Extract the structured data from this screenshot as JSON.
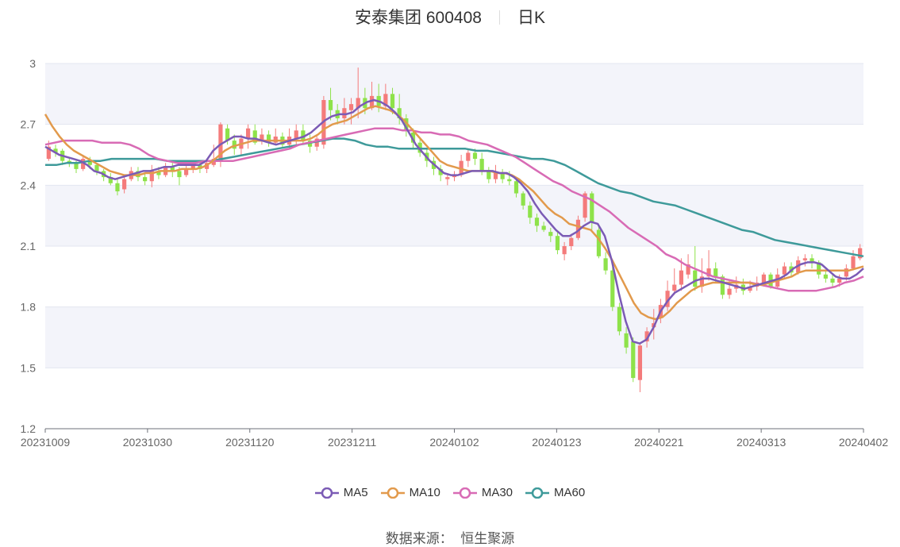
{
  "title": {
    "name": "安泰集团 600408",
    "period": "日K"
  },
  "source": {
    "label": "数据来源：",
    "provider": "恒生聚源"
  },
  "colors": {
    "up": "#f47b7b",
    "down": "#8ee24a",
    "ma5": "#7b5bb5",
    "ma10": "#e29a4c",
    "ma30": "#d86bb5",
    "ma60": "#3e9a9a",
    "band": "#f3f4fa",
    "grid": "#e3e6f0"
  },
  "chart_data": {
    "type": "candlestick",
    "ylim": [
      1.2,
      3.0
    ],
    "yticks": [
      1.2,
      1.5,
      1.8,
      2.1,
      2.4,
      2.7,
      3
    ],
    "xticks": [
      "20231009",
      "20231030",
      "20231120",
      "20231211",
      "20240102",
      "20240123",
      "20240221",
      "20240313",
      "20240402"
    ],
    "legend": [
      "MA5",
      "MA10",
      "MA30",
      "MA60"
    ],
    "candles": [
      [
        2.53,
        2.59,
        2.52,
        2.62
      ],
      [
        2.58,
        2.56,
        2.54,
        2.6
      ],
      [
        2.57,
        2.52,
        2.5,
        2.58
      ],
      [
        2.52,
        2.51,
        2.49,
        2.54
      ],
      [
        2.51,
        2.48,
        2.46,
        2.52
      ],
      [
        2.48,
        2.53,
        2.47,
        2.55
      ],
      [
        2.52,
        2.5,
        2.48,
        2.54
      ],
      [
        2.5,
        2.47,
        2.45,
        2.51
      ],
      [
        2.47,
        2.44,
        2.42,
        2.48
      ],
      [
        2.44,
        2.41,
        2.4,
        2.46
      ],
      [
        2.41,
        2.37,
        2.35,
        2.43
      ],
      [
        2.38,
        2.43,
        2.36,
        2.45
      ],
      [
        2.43,
        2.47,
        2.42,
        2.49
      ],
      [
        2.47,
        2.44,
        2.42,
        2.49
      ],
      [
        2.44,
        2.42,
        2.4,
        2.46
      ],
      [
        2.42,
        2.47,
        2.39,
        2.5
      ],
      [
        2.47,
        2.45,
        2.43,
        2.49
      ],
      [
        2.45,
        2.49,
        2.44,
        2.51
      ],
      [
        2.49,
        2.47,
        2.44,
        2.51
      ],
      [
        2.47,
        2.44,
        2.4,
        2.49
      ],
      [
        2.45,
        2.48,
        2.44,
        2.5
      ],
      [
        2.48,
        2.5,
        2.46,
        2.52
      ],
      [
        2.5,
        2.48,
        2.46,
        2.52
      ],
      [
        2.48,
        2.51,
        2.46,
        2.53
      ],
      [
        2.5,
        2.53,
        2.49,
        2.6
      ],
      [
        2.52,
        2.7,
        2.49,
        2.71
      ],
      [
        2.68,
        2.62,
        2.6,
        2.7
      ],
      [
        2.62,
        2.58,
        2.55,
        2.65
      ],
      [
        2.58,
        2.63,
        2.55,
        2.65
      ],
      [
        2.63,
        2.68,
        2.58,
        2.7
      ],
      [
        2.67,
        2.61,
        2.6,
        2.7
      ],
      [
        2.62,
        2.65,
        2.6,
        2.68
      ],
      [
        2.65,
        2.61,
        2.59,
        2.67
      ],
      [
        2.61,
        2.64,
        2.6,
        2.68
      ],
      [
        2.64,
        2.6,
        2.58,
        2.66
      ],
      [
        2.6,
        2.64,
        2.58,
        2.68
      ],
      [
        2.63,
        2.67,
        2.6,
        2.7
      ],
      [
        2.67,
        2.62,
        2.6,
        2.7
      ],
      [
        2.62,
        2.59,
        2.56,
        2.65
      ],
      [
        2.59,
        2.63,
        2.57,
        2.65
      ],
      [
        2.6,
        2.82,
        2.58,
        2.84
      ],
      [
        2.82,
        2.77,
        2.72,
        2.88
      ],
      [
        2.77,
        2.73,
        2.7,
        2.8
      ],
      [
        2.73,
        2.78,
        2.7,
        2.83
      ],
      [
        2.77,
        2.8,
        2.7,
        2.83
      ],
      [
        2.78,
        2.83,
        2.73,
        2.98
      ],
      [
        2.83,
        2.78,
        2.75,
        2.88
      ],
      [
        2.78,
        2.84,
        2.77,
        2.91
      ],
      [
        2.84,
        2.79,
        2.76,
        2.9
      ],
      [
        2.79,
        2.85,
        2.77,
        2.9
      ],
      [
        2.85,
        2.78,
        2.75,
        2.88
      ],
      [
        2.78,
        2.73,
        2.7,
        2.85
      ],
      [
        2.73,
        2.67,
        2.64,
        2.75
      ],
      [
        2.66,
        2.61,
        2.58,
        2.68
      ],
      [
        2.61,
        2.56,
        2.54,
        2.63
      ],
      [
        2.56,
        2.52,
        2.49,
        2.58
      ],
      [
        2.52,
        2.48,
        2.45,
        2.54
      ],
      [
        2.48,
        2.45,
        2.42,
        2.5
      ],
      [
        2.43,
        2.44,
        2.4,
        2.46
      ],
      [
        2.44,
        2.45,
        2.42,
        2.47
      ],
      [
        2.45,
        2.52,
        2.44,
        2.55
      ],
      [
        2.52,
        2.56,
        2.49,
        2.58
      ],
      [
        2.56,
        2.53,
        2.5,
        2.58
      ],
      [
        2.53,
        2.47,
        2.45,
        2.56
      ],
      [
        2.47,
        2.43,
        2.41,
        2.49
      ],
      [
        2.43,
        2.46,
        2.41,
        2.5
      ],
      [
        2.46,
        2.43,
        2.41,
        2.48
      ],
      [
        2.43,
        2.42,
        2.4,
        2.47
      ],
      [
        2.42,
        2.36,
        2.34,
        2.44
      ],
      [
        2.36,
        2.3,
        2.28,
        2.37
      ],
      [
        2.3,
        2.24,
        2.21,
        2.32
      ],
      [
        2.24,
        2.2,
        2.17,
        2.26
      ],
      [
        2.2,
        2.18,
        2.17,
        2.22
      ],
      [
        2.17,
        2.15,
        2.12,
        2.19
      ],
      [
        2.15,
        2.08,
        2.06,
        2.17
      ],
      [
        2.06,
        2.1,
        2.03,
        2.12
      ],
      [
        2.1,
        2.14,
        2.08,
        2.16
      ],
      [
        2.14,
        2.23,
        2.13,
        2.25
      ],
      [
        2.24,
        2.36,
        2.22,
        2.37
      ],
      [
        2.36,
        2.22,
        2.18,
        2.37
      ],
      [
        2.18,
        2.05,
        2.04,
        2.2
      ],
      [
        2.04,
        1.98,
        1.96,
        2.07
      ],
      [
        1.98,
        1.8,
        1.78,
        2.0
      ],
      [
        1.8,
        1.68,
        1.66,
        1.82
      ],
      [
        1.67,
        1.6,
        1.57,
        1.7
      ],
      [
        1.63,
        1.45,
        1.43,
        1.65
      ],
      [
        1.44,
        1.61,
        1.38,
        1.62
      ],
      [
        1.63,
        1.68,
        1.6,
        1.7
      ],
      [
        1.7,
        1.72,
        1.64,
        1.79
      ],
      [
        1.75,
        1.81,
        1.72,
        1.84
      ],
      [
        1.8,
        1.88,
        1.78,
        1.93
      ],
      [
        1.88,
        1.91,
        1.86,
        1.99
      ],
      [
        1.91,
        1.98,
        1.88,
        2.04
      ],
      [
        1.96,
        2.01,
        1.94,
        2.06
      ],
      [
        1.98,
        1.9,
        1.88,
        2.1
      ],
      [
        1.9,
        1.95,
        1.87,
        2.04
      ],
      [
        1.95,
        1.99,
        1.93,
        2.08
      ],
      [
        1.99,
        1.95,
        1.92,
        2.02
      ],
      [
        1.95,
        1.86,
        1.84,
        1.96
      ],
      [
        1.86,
        1.89,
        1.84,
        1.93
      ],
      [
        1.89,
        1.91,
        1.87,
        1.95
      ],
      [
        1.91,
        1.88,
        1.86,
        1.94
      ],
      [
        1.88,
        1.9,
        1.87,
        1.93
      ],
      [
        1.9,
        1.92,
        1.88,
        1.95
      ],
      [
        1.92,
        1.96,
        1.9,
        1.97
      ],
      [
        1.96,
        1.9,
        1.89,
        1.97
      ],
      [
        1.9,
        1.96,
        1.89,
        1.99
      ],
      [
        1.96,
        2.0,
        1.94,
        2.02
      ],
      [
        2.0,
        1.97,
        1.95,
        2.02
      ],
      [
        1.97,
        2.03,
        1.96,
        2.05
      ],
      [
        2.03,
        2.04,
        2.0,
        2.06
      ],
      [
        2.04,
        2.02,
        1.99,
        2.06
      ],
      [
        2.02,
        1.96,
        1.94,
        2.03
      ],
      [
        1.96,
        1.94,
        1.92,
        1.98
      ],
      [
        1.94,
        1.92,
        1.9,
        1.96
      ],
      [
        1.92,
        1.94,
        1.9,
        1.96
      ],
      [
        1.95,
        1.99,
        1.93,
        2.01
      ],
      [
        1.99,
        2.05,
        1.98,
        2.08
      ],
      [
        2.04,
        2.09,
        2.03,
        2.11
      ]
    ],
    "ma5": [
      2.59,
      2.57,
      2.55,
      2.54,
      2.53,
      2.52,
      2.5,
      2.47,
      2.46,
      2.44,
      2.43,
      2.44,
      2.45,
      2.46,
      2.47,
      2.47,
      2.48,
      2.49,
      2.49,
      2.5,
      2.5,
      2.5,
      2.5,
      2.52,
      2.57,
      2.6,
      2.62,
      2.64,
      2.64,
      2.63,
      2.63,
      2.62,
      2.61,
      2.6,
      2.61,
      2.62,
      2.63,
      2.64,
      2.66,
      2.69,
      2.72,
      2.74,
      2.75,
      2.75,
      2.76,
      2.79,
      2.81,
      2.82,
      2.81,
      2.79,
      2.76,
      2.72,
      2.66,
      2.6,
      2.56,
      2.52,
      2.49,
      2.46,
      2.45,
      2.45,
      2.46,
      2.47,
      2.47,
      2.47,
      2.47,
      2.46,
      2.46,
      2.44,
      2.41,
      2.37,
      2.31,
      2.26,
      2.22,
      2.18,
      2.15,
      2.15,
      2.17,
      2.2,
      2.22,
      2.21,
      2.15,
      2.03,
      1.87,
      1.73,
      1.63,
      1.62,
      1.64,
      1.7,
      1.78,
      1.83,
      1.87,
      1.89,
      1.91,
      1.93,
      1.94,
      1.94,
      1.93,
      1.92,
      1.91,
      1.9,
      1.89,
      1.9,
      1.91,
      1.92,
      1.93,
      1.94,
      1.96,
      1.99,
      2.01,
      2.02,
      2.02,
      2.01,
      1.98,
      1.95,
      1.94,
      1.94,
      1.96,
      1.99
    ],
    "ma10": [
      2.75,
      2.69,
      2.64,
      2.6,
      2.57,
      2.55,
      2.53,
      2.51,
      2.49,
      2.47,
      2.46,
      2.45,
      2.45,
      2.45,
      2.46,
      2.46,
      2.47,
      2.47,
      2.47,
      2.48,
      2.48,
      2.48,
      2.49,
      2.51,
      2.54,
      2.57,
      2.59,
      2.6,
      2.61,
      2.62,
      2.62,
      2.62,
      2.62,
      2.62,
      2.62,
      2.62,
      2.62,
      2.63,
      2.65,
      2.68,
      2.7,
      2.71,
      2.72,
      2.74,
      2.76,
      2.78,
      2.79,
      2.78,
      2.77,
      2.75,
      2.72,
      2.68,
      2.64,
      2.6,
      2.56,
      2.52,
      2.5,
      2.49,
      2.48,
      2.47,
      2.47,
      2.47,
      2.47,
      2.46,
      2.46,
      2.45,
      2.43,
      2.4,
      2.37,
      2.33,
      2.29,
      2.26,
      2.24,
      2.21,
      2.2,
      2.19,
      2.18,
      2.14,
      2.09,
      2.03,
      1.96,
      1.89,
      1.82,
      1.77,
      1.75,
      1.74,
      1.75,
      1.78,
      1.82,
      1.85,
      1.88,
      1.9,
      1.91,
      1.92,
      1.92,
      1.92,
      1.92,
      1.92,
      1.92,
      1.91,
      1.91,
      1.92,
      1.93,
      1.94,
      1.95,
      1.97,
      1.98,
      1.98,
      1.98,
      1.98,
      1.98,
      1.98,
      1.98,
      1.99,
      2.0
    ],
    "ma30": [
      2.6,
      2.61,
      2.62,
      2.62,
      2.62,
      2.62,
      2.61,
      2.61,
      2.61,
      2.6,
      2.58,
      2.55,
      2.53,
      2.52,
      2.51,
      2.51,
      2.51,
      2.52,
      2.52,
      2.52,
      2.52,
      2.53,
      2.54,
      2.55,
      2.56,
      2.57,
      2.58,
      2.6,
      2.61,
      2.62,
      2.63,
      2.64,
      2.65,
      2.66,
      2.67,
      2.68,
      2.68,
      2.68,
      2.67,
      2.67,
      2.66,
      2.66,
      2.65,
      2.65,
      2.64,
      2.62,
      2.61,
      2.6,
      2.58,
      2.56,
      2.54,
      2.51,
      2.48,
      2.45,
      2.42,
      2.4,
      2.37,
      2.35,
      2.33,
      2.3,
      2.27,
      2.23,
      2.19,
      2.16,
      2.13,
      2.1,
      2.06,
      2.04,
      2.01,
      1.99,
      1.97,
      1.95,
      1.94,
      1.93,
      1.92,
      1.92,
      1.91,
      1.9,
      1.89,
      1.88,
      1.88,
      1.88,
      1.88,
      1.89,
      1.9,
      1.92,
      1.93,
      1.95
    ],
    "ma60": [
      2.5,
      2.5,
      2.51,
      2.51,
      2.52,
      2.52,
      2.53,
      2.53,
      2.53,
      2.53,
      2.53,
      2.52,
      2.52,
      2.52,
      2.52,
      2.52,
      2.53,
      2.54,
      2.55,
      2.56,
      2.57,
      2.58,
      2.59,
      2.6,
      2.61,
      2.62,
      2.63,
      2.63,
      2.62,
      2.6,
      2.59,
      2.59,
      2.58,
      2.58,
      2.58,
      2.58,
      2.58,
      2.58,
      2.58,
      2.57,
      2.57,
      2.56,
      2.55,
      2.54,
      2.53,
      2.53,
      2.52,
      2.5,
      2.47,
      2.44,
      2.41,
      2.39,
      2.37,
      2.36,
      2.34,
      2.32,
      2.31,
      2.3,
      2.28,
      2.26,
      2.24,
      2.22,
      2.2,
      2.18,
      2.17,
      2.15,
      2.13,
      2.12,
      2.11,
      2.1,
      2.09,
      2.08,
      2.07,
      2.06,
      2.05
    ],
    "ma60_start": 0,
    "ma30_start": 0
  }
}
